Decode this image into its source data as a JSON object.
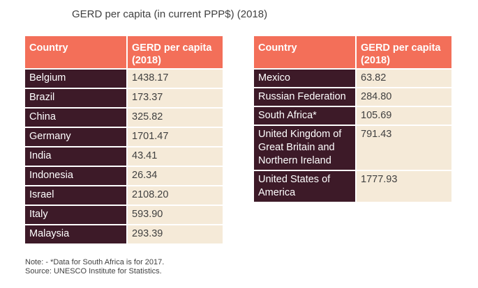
{
  "chart_data": {
    "type": "table",
    "title": "GERD per capita (in current PPP$) (2018)",
    "columns": [
      "Country",
      "GERD per capita (2018)"
    ],
    "tables": [
      {
        "rows": [
          {
            "country": "Belgium",
            "value": "1438.17"
          },
          {
            "country": "Brazil",
            "value": "173.37"
          },
          {
            "country": "China",
            "value": "325.82"
          },
          {
            "country": "Germany",
            "value": "1701.47"
          },
          {
            "country": "India",
            "value": "43.41"
          },
          {
            "country": "Indonesia",
            "value": "26.34"
          },
          {
            "country": "Israel",
            "value": "2108.20"
          },
          {
            "country": "Italy",
            "value": "593.90"
          },
          {
            "country": "Malaysia",
            "value": "293.39"
          }
        ]
      },
      {
        "rows": [
          {
            "country": "Mexico",
            "value": "63.82"
          },
          {
            "country": "Russian Federation",
            "value": "284.80"
          },
          {
            "country": "South Africa*",
            "value": "105.69"
          },
          {
            "country": "United Kingdom of Great Britain and Northern Ireland",
            "value": "791.43"
          },
          {
            "country": "United States of America",
            "value": "1777.93"
          }
        ]
      }
    ],
    "notes": [
      "Note: - *Data for South Africa is for 2017.",
      "Source: UNESCO Institute for Statistics."
    ]
  },
  "colors": {
    "header_bg": "#f36f59",
    "country_bg": "#3d1a28",
    "value_bg": "#f5ead8"
  }
}
